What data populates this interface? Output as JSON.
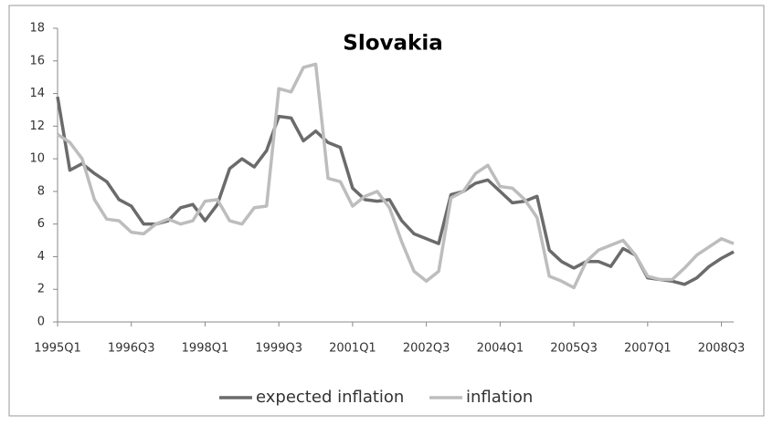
{
  "chart_data": {
    "type": "line",
    "title": "Slovakia",
    "categories": [
      "1995Q1",
      null,
      null,
      null,
      null,
      null,
      "1996Q3",
      null,
      null,
      null,
      null,
      null,
      "1998Q1",
      null,
      null,
      null,
      null,
      null,
      "1999Q3",
      null,
      null,
      null,
      null,
      null,
      "2001Q1",
      null,
      null,
      null,
      null,
      null,
      "2002Q3",
      null,
      null,
      null,
      null,
      null,
      "2004Q1",
      null,
      null,
      null,
      null,
      null,
      "2005Q3",
      null,
      null,
      null,
      null,
      null,
      "2007Q1",
      null,
      null,
      null,
      null,
      null,
      "2008Q3",
      null
    ],
    "series": [
      {
        "name": "expected inflation",
        "color": "#6b6b6b",
        "values": [
          13.8,
          9.3,
          9.7,
          9.1,
          8.6,
          7.5,
          7.1,
          6.0,
          6.0,
          6.2,
          7.0,
          7.2,
          6.2,
          7.2,
          9.4,
          10.0,
          9.5,
          10.5,
          12.6,
          12.5,
          11.1,
          11.7,
          11.0,
          10.7,
          8.2,
          7.5,
          7.4,
          7.5,
          6.2,
          5.4,
          5.1,
          4.8,
          7.8,
          8.0,
          8.5,
          8.7,
          8.0,
          7.3,
          7.4,
          7.7,
          4.4,
          3.7,
          3.3,
          3.7,
          3.7,
          3.4,
          4.5,
          4.1,
          2.7,
          2.6,
          2.5,
          2.3,
          2.7,
          3.4,
          3.9,
          4.3
        ]
      },
      {
        "name": "inflation",
        "color": "#bdbdbd",
        "values": [
          11.5,
          11.0,
          10.0,
          7.5,
          6.3,
          6.2,
          5.5,
          5.4,
          6.0,
          6.3,
          6.0,
          6.2,
          7.4,
          7.5,
          6.2,
          6.0,
          7.0,
          7.1,
          14.3,
          14.1,
          15.6,
          15.8,
          8.8,
          8.6,
          7.1,
          7.7,
          8.0,
          7.0,
          4.9,
          3.1,
          2.5,
          3.1,
          7.6,
          8.0,
          9.1,
          9.6,
          8.3,
          8.2,
          7.5,
          6.4,
          2.8,
          2.5,
          2.1,
          3.7,
          4.4,
          4.7,
          5.0,
          4.1,
          2.8,
          2.6,
          2.6,
          3.3,
          4.1,
          4.6,
          5.1,
          4.8
        ]
      }
    ],
    "ylim": [
      0,
      18
    ],
    "yticks": [
      0,
      2,
      4,
      6,
      8,
      10,
      12,
      14,
      16,
      18
    ],
    "legend": "bottom"
  }
}
